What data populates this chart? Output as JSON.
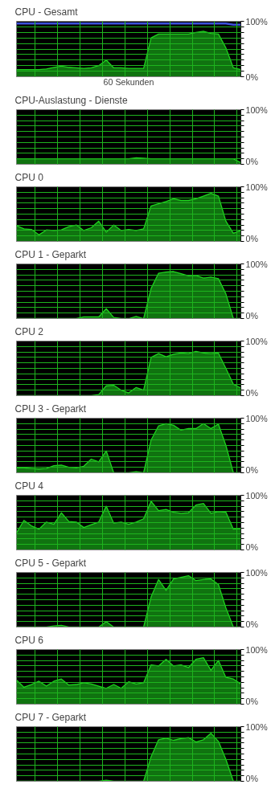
{
  "chart_data": [
    {
      "type": "area",
      "title": "CPU - Gesamt",
      "xlabel": "60 Sekunden",
      "categories": [
        null,
        null,
        null,
        null,
        null,
        null,
        null,
        null,
        null,
        null,
        null,
        null,
        null,
        null,
        null,
        null,
        null,
        null,
        null,
        null,
        null,
        null,
        null,
        null,
        null,
        null,
        null,
        null,
        null,
        null,
        null
      ],
      "ylim": [
        0,
        100
      ],
      "grid": true,
      "tick_labels": "y",
      "yticks": [
        {
          "value": 0,
          "label": "0%"
        },
        {
          "value": 10,
          "label": null
        },
        {
          "value": 20,
          "label": null
        },
        {
          "value": 30,
          "label": null
        },
        {
          "value": 40,
          "label": null
        },
        {
          "value": 50,
          "label": null
        },
        {
          "value": 60,
          "label": null
        },
        {
          "value": 70,
          "label": null
        },
        {
          "value": 80,
          "label": null
        },
        {
          "value": 90,
          "label": null
        },
        {
          "value": 100,
          "label": "100%"
        }
      ],
      "series": [
        {
          "color": "#1ed21e",
          "values": [
            13,
            13,
            13,
            13,
            14,
            17,
            19,
            17,
            16,
            15,
            16,
            20,
            30,
            16,
            16,
            15,
            15,
            15,
            70,
            77,
            77,
            77,
            77,
            77,
            80,
            82,
            78,
            77,
            52,
            16,
            13
          ]
        },
        {
          "type": "line",
          "color": "#3c50dc",
          "values": [
            96,
            96,
            96,
            96,
            96,
            96,
            96,
            96,
            96,
            96,
            96,
            96,
            96,
            96,
            96,
            96,
            96,
            96,
            96,
            96,
            96,
            96,
            96,
            96,
            96,
            96,
            96,
            96,
            96,
            94,
            94
          ]
        }
      ]
    },
    {
      "type": "area",
      "title": "CPU-Auslastung - Dienste",
      "categories": [
        null,
        null,
        null,
        null,
        null,
        null,
        null,
        null,
        null,
        null,
        null,
        null,
        null,
        null,
        null,
        null,
        null,
        null,
        null,
        null,
        null,
        null,
        null,
        null,
        null,
        null,
        null,
        null,
        null,
        null,
        null
      ],
      "ylim": [
        0,
        100
      ],
      "grid": true,
      "tick_labels": "y",
      "yticks": [
        {
          "value": 0,
          "label": "0%"
        },
        {
          "value": 10,
          "label": null
        },
        {
          "value": 20,
          "label": null
        },
        {
          "value": 30,
          "label": null
        },
        {
          "value": 40,
          "label": null
        },
        {
          "value": 50,
          "label": null
        },
        {
          "value": 60,
          "label": null
        },
        {
          "value": 70,
          "label": null
        },
        {
          "value": 80,
          "label": null
        },
        {
          "value": 90,
          "label": null
        },
        {
          "value": 100,
          "label": "100%"
        }
      ],
      "series": [
        {
          "color": "#1ed21e",
          "values": [
            10,
            10,
            10,
            10,
            10,
            10,
            10,
            10,
            10,
            10,
            10,
            10,
            10,
            10,
            10,
            10,
            12,
            11,
            10,
            10,
            10,
            10,
            10,
            10,
            10,
            10,
            10,
            10,
            10,
            10,
            3
          ]
        }
      ]
    },
    {
      "type": "area",
      "title": "CPU 0",
      "categories": [
        null,
        null,
        null,
        null,
        null,
        null,
        null,
        null,
        null,
        null,
        null,
        null,
        null,
        null,
        null,
        null,
        null,
        null,
        null,
        null,
        null,
        null,
        null,
        null,
        null,
        null,
        null,
        null,
        null,
        null,
        null
      ],
      "ylim": [
        0,
        100
      ],
      "grid": true,
      "tick_labels": "y",
      "yticks": [
        {
          "value": 0,
          "label": "0%"
        },
        {
          "value": 10,
          "label": null
        },
        {
          "value": 20,
          "label": null
        },
        {
          "value": 30,
          "label": null
        },
        {
          "value": 40,
          "label": null
        },
        {
          "value": 50,
          "label": null
        },
        {
          "value": 60,
          "label": null
        },
        {
          "value": 70,
          "label": null
        },
        {
          "value": 80,
          "label": null
        },
        {
          "value": 90,
          "label": null
        },
        {
          "value": 100,
          "label": "100%"
        }
      ],
      "series": [
        {
          "color": "#1ed21e",
          "values": [
            29,
            23,
            22,
            12,
            21,
            20,
            21,
            27,
            30,
            20,
            25,
            37,
            17,
            30,
            20,
            22,
            20,
            23,
            65,
            69,
            73,
            78,
            75,
            75,
            78,
            83,
            88,
            83,
            37,
            15,
            20
          ]
        }
      ]
    },
    {
      "type": "area",
      "title": "CPU 1 - Geparkt",
      "categories": [
        null,
        null,
        null,
        null,
        null,
        null,
        null,
        null,
        null,
        null,
        null,
        null,
        null,
        null,
        null,
        null,
        null,
        null,
        null,
        null,
        null,
        null,
        null,
        null,
        null,
        null,
        null,
        null,
        null,
        null,
        null
      ],
      "ylim": [
        0,
        100
      ],
      "grid": true,
      "tick_labels": "y",
      "yticks": [
        {
          "value": 0,
          "label": "0%"
        },
        {
          "value": 10,
          "label": null
        },
        {
          "value": 20,
          "label": null
        },
        {
          "value": 30,
          "label": null
        },
        {
          "value": 40,
          "label": null
        },
        {
          "value": 50,
          "label": null
        },
        {
          "value": 60,
          "label": null
        },
        {
          "value": 70,
          "label": null
        },
        {
          "value": 80,
          "label": null
        },
        {
          "value": 90,
          "label": null
        },
        {
          "value": 100,
          "label": "100%"
        }
      ],
      "series": [
        {
          "color": "#1ed21e",
          "values": [
            0,
            0,
            0,
            0,
            0,
            0,
            0,
            0,
            0,
            3,
            3,
            3,
            18,
            2,
            0,
            0,
            4,
            0,
            55,
            83,
            85,
            86,
            82,
            78,
            79,
            74,
            76,
            73,
            45,
            0,
            0
          ]
        }
      ]
    },
    {
      "type": "area",
      "title": "CPU 2",
      "categories": [
        null,
        null,
        null,
        null,
        null,
        null,
        null,
        null,
        null,
        null,
        null,
        null,
        null,
        null,
        null,
        null,
        null,
        null,
        null,
        null,
        null,
        null,
        null,
        null,
        null,
        null,
        null,
        null,
        null,
        null,
        null
      ],
      "ylim": [
        0,
        100
      ],
      "grid": true,
      "tick_labels": "y",
      "yticks": [
        {
          "value": 0,
          "label": "0%"
        },
        {
          "value": 10,
          "label": null
        },
        {
          "value": 20,
          "label": null
        },
        {
          "value": 30,
          "label": null
        },
        {
          "value": 40,
          "label": null
        },
        {
          "value": 50,
          "label": null
        },
        {
          "value": 60,
          "label": null
        },
        {
          "value": 70,
          "label": null
        },
        {
          "value": 80,
          "label": null
        },
        {
          "value": 90,
          "label": null
        },
        {
          "value": 100,
          "label": "100%"
        }
      ],
      "series": [
        {
          "color": "#1ed21e",
          "values": [
            0,
            0,
            0,
            0,
            0,
            0,
            0,
            0,
            0,
            0,
            0,
            2,
            18,
            19,
            10,
            5,
            15,
            10,
            70,
            77,
            71,
            76,
            78,
            77,
            81,
            78,
            77,
            78,
            50,
            21,
            14
          ]
        }
      ]
    },
    {
      "type": "area",
      "title": "CPU 3 - Geparkt",
      "categories": [
        null,
        null,
        null,
        null,
        null,
        null,
        null,
        null,
        null,
        null,
        null,
        null,
        null,
        null,
        null,
        null,
        null,
        null,
        null,
        null,
        null,
        null,
        null,
        null,
        null,
        null,
        null,
        null,
        null,
        null,
        null
      ],
      "ylim": [
        0,
        100
      ],
      "grid": true,
      "tick_labels": "y",
      "yticks": [
        {
          "value": 0,
          "label": "0%"
        },
        {
          "value": 10,
          "label": null
        },
        {
          "value": 20,
          "label": null
        },
        {
          "value": 30,
          "label": null
        },
        {
          "value": 40,
          "label": null
        },
        {
          "value": 50,
          "label": null
        },
        {
          "value": 60,
          "label": null
        },
        {
          "value": 70,
          "label": null
        },
        {
          "value": 80,
          "label": null
        },
        {
          "value": 90,
          "label": null
        },
        {
          "value": 100,
          "label": "100%"
        }
      ],
      "series": [
        {
          "color": "#1ed21e",
          "values": [
            9,
            9,
            8,
            7,
            8,
            13,
            14,
            10,
            9,
            12,
            25,
            20,
            40,
            0,
            0,
            0,
            2,
            0,
            60,
            86,
            90,
            87,
            78,
            81,
            81,
            90,
            81,
            89,
            50,
            0,
            0
          ]
        }
      ]
    },
    {
      "type": "area",
      "title": "CPU 4",
      "categories": [
        null,
        null,
        null,
        null,
        null,
        null,
        null,
        null,
        null,
        null,
        null,
        null,
        null,
        null,
        null,
        null,
        null,
        null,
        null,
        null,
        null,
        null,
        null,
        null,
        null,
        null,
        null,
        null,
        null,
        null,
        null
      ],
      "ylim": [
        0,
        100
      ],
      "grid": true,
      "tick_labels": "y",
      "yticks": [
        {
          "value": 0,
          "label": "0%"
        },
        {
          "value": 10,
          "label": null
        },
        {
          "value": 20,
          "label": null
        },
        {
          "value": 30,
          "label": null
        },
        {
          "value": 40,
          "label": null
        },
        {
          "value": 50,
          "label": null
        },
        {
          "value": 60,
          "label": null
        },
        {
          "value": 70,
          "label": null
        },
        {
          "value": 80,
          "label": null
        },
        {
          "value": 90,
          "label": null
        },
        {
          "value": 100,
          "label": "100%"
        }
      ],
      "series": [
        {
          "color": "#1ed21e",
          "values": [
            31,
            54,
            44,
            38,
            51,
            47,
            68,
            52,
            51,
            41,
            46,
            51,
            80,
            49,
            51,
            47,
            51,
            57,
            89,
            72,
            74,
            69,
            67,
            68,
            82,
            85,
            67,
            70,
            69,
            38,
            39
          ]
        }
      ]
    },
    {
      "type": "area",
      "title": "CPU 5 - Geparkt",
      "categories": [
        null,
        null,
        null,
        null,
        null,
        null,
        null,
        null,
        null,
        null,
        null,
        null,
        null,
        null,
        null,
        null,
        null,
        null,
        null,
        null,
        null,
        null,
        null,
        null,
        null,
        null,
        null,
        null,
        null,
        null,
        null
      ],
      "ylim": [
        0,
        100
      ],
      "grid": true,
      "tick_labels": "y",
      "yticks": [
        {
          "value": 0,
          "label": "0%"
        },
        {
          "value": 10,
          "label": null
        },
        {
          "value": 20,
          "label": null
        },
        {
          "value": 30,
          "label": null
        },
        {
          "value": 40,
          "label": null
        },
        {
          "value": 50,
          "label": null
        },
        {
          "value": 60,
          "label": null
        },
        {
          "value": 70,
          "label": null
        },
        {
          "value": 80,
          "label": null
        },
        {
          "value": 90,
          "label": null
        },
        {
          "value": 100,
          "label": "100%"
        }
      ],
      "series": [
        {
          "color": "#1ed21e",
          "values": [
            0,
            0,
            0,
            0,
            0,
            2,
            3,
            0,
            0,
            0,
            0,
            0,
            10,
            0,
            0,
            0,
            0,
            0,
            55,
            87,
            67,
            88,
            91,
            94,
            85,
            87,
            88,
            78,
            35,
            0,
            0
          ]
        }
      ]
    },
    {
      "type": "area",
      "title": "CPU 6",
      "categories": [
        null,
        null,
        null,
        null,
        null,
        null,
        null,
        null,
        null,
        null,
        null,
        null,
        null,
        null,
        null,
        null,
        null,
        null,
        null,
        null,
        null,
        null,
        null,
        null,
        null,
        null,
        null,
        null,
        null,
        null,
        null
      ],
      "ylim": [
        0,
        100
      ],
      "grid": true,
      "tick_labels": "y",
      "yticks": [
        {
          "value": 0,
          "label": "0%"
        },
        {
          "value": 10,
          "label": null
        },
        {
          "value": 20,
          "label": null
        },
        {
          "value": 30,
          "label": null
        },
        {
          "value": 40,
          "label": null
        },
        {
          "value": 50,
          "label": null
        },
        {
          "value": 60,
          "label": null
        },
        {
          "value": 70,
          "label": null
        },
        {
          "value": 80,
          "label": null
        },
        {
          "value": 90,
          "label": null
        },
        {
          "value": 100,
          "label": "100%"
        }
      ],
      "series": [
        {
          "color": "#1ed21e",
          "values": [
            44,
            31,
            36,
            42,
            33,
            42,
            46,
            35,
            36,
            39,
            37,
            33,
            29,
            36,
            29,
            41,
            37,
            39,
            72,
            70,
            82,
            70,
            72,
            67,
            82,
            85,
            62,
            80,
            49,
            46,
            37
          ]
        }
      ]
    },
    {
      "type": "area",
      "title": "CPU 7 - Geparkt",
      "categories": [
        null,
        null,
        null,
        null,
        null,
        null,
        null,
        null,
        null,
        null,
        null,
        null,
        null,
        null,
        null,
        null,
        null,
        null,
        null,
        null,
        null,
        null,
        null,
        null,
        null,
        null,
        null,
        null,
        null,
        null,
        null
      ],
      "ylim": [
        0,
        100
      ],
      "grid": true,
      "tick_labels": "y",
      "yticks": [
        {
          "value": 0,
          "label": "0%"
        },
        {
          "value": 10,
          "label": null
        },
        {
          "value": 20,
          "label": null
        },
        {
          "value": 30,
          "label": null
        },
        {
          "value": 40,
          "label": null
        },
        {
          "value": 50,
          "label": null
        },
        {
          "value": 60,
          "label": null
        },
        {
          "value": 70,
          "label": null
        },
        {
          "value": 80,
          "label": null
        },
        {
          "value": 90,
          "label": null
        },
        {
          "value": 100,
          "label": "100%"
        }
      ],
      "series": [
        {
          "color": "#1ed21e",
          "values": [
            0,
            0,
            0,
            0,
            0,
            0,
            0,
            0,
            0,
            0,
            0,
            0,
            2,
            0,
            0,
            0,
            0,
            0,
            45,
            76,
            79,
            75,
            78,
            80,
            72,
            76,
            88,
            73,
            40,
            0,
            0
          ]
        }
      ]
    }
  ]
}
